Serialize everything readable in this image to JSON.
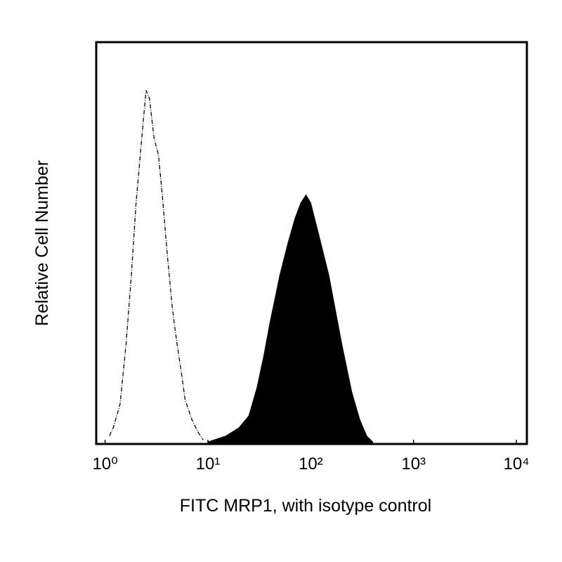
{
  "chart_data": {
    "type": "histogram",
    "xlabel": "FITC MRP1, with isotype control",
    "ylabel": "Relative Cell Number",
    "xscale": "log",
    "xlim": [
      0.82,
      12650
    ],
    "ylim": [
      0,
      100
    ],
    "xticks": [
      {
        "value": 1,
        "label": "10⁰"
      },
      {
        "value": 10,
        "label": "10¹"
      },
      {
        "value": 100,
        "label": "10²"
      },
      {
        "value": 1000,
        "label": "10³"
      },
      {
        "value": 10000,
        "label": "10⁴"
      }
    ],
    "series": [
      {
        "color": "#000000",
        "fill": false,
        "x": [
          1.1,
          1.2,
          1.4,
          1.6,
          1.8,
          2.0,
          2.2,
          2.5,
          2.7,
          3.0,
          3.3,
          3.6,
          4.0,
          4.5,
          5.0,
          5.5,
          6.0,
          7.0,
          8.0,
          9.0
        ],
        "values": [
          2,
          4,
          10,
          25,
          42,
          60,
          72,
          88,
          86,
          76,
          72,
          62,
          48,
          34,
          25,
          18,
          11,
          6,
          3,
          1
        ]
      },
      {
        "color": "#000000",
        "fill": true,
        "x": [
          10,
          15,
          20,
          25,
          30,
          35,
          40,
          50,
          60,
          70,
          80,
          90,
          100,
          120,
          150,
          200,
          250,
          300,
          350,
          400
        ],
        "values": [
          0.5,
          2,
          4,
          7,
          14,
          22,
          30,
          42,
          50,
          56,
          60,
          62,
          60,
          52,
          42,
          25,
          13,
          6,
          2,
          0.5
        ]
      }
    ]
  }
}
